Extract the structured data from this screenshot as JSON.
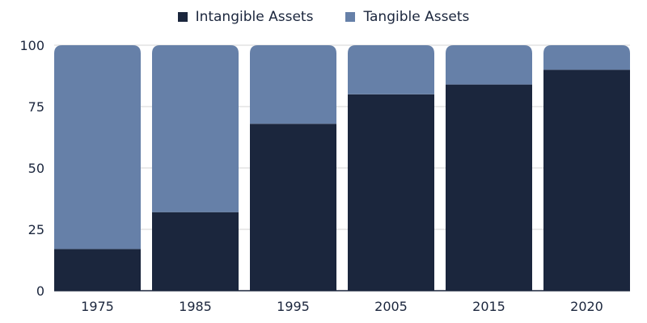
{
  "chart_data": {
    "type": "bar",
    "stacked": true,
    "categories": [
      "1975",
      "1985",
      "1995",
      "2005",
      "2015",
      "2020"
    ],
    "series": [
      {
        "name": "Intangible Assets",
        "color": "#1b263d",
        "values": [
          17,
          32,
          68,
          80,
          84,
          90
        ]
      },
      {
        "name": "Tangible Assets",
        "color": "#6680a8",
        "values": [
          83,
          68,
          32,
          20,
          16,
          10
        ]
      }
    ],
    "ylim": [
      0,
      100
    ],
    "yticks": [
      0,
      25,
      50,
      75,
      100
    ],
    "grid": true,
    "legend_position": "top"
  }
}
